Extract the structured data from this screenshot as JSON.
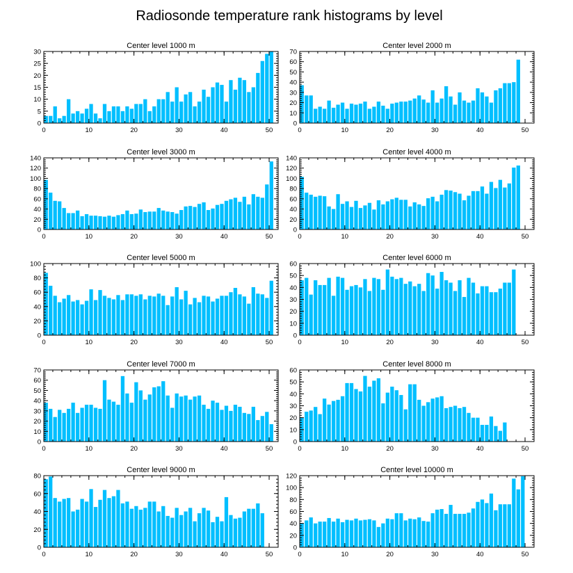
{
  "figure_title": "Radiosonde temperature rank histograms by level",
  "colors": {
    "bar": "#00BFFF",
    "axis": "#000000"
  },
  "chart_data": [
    {
      "type": "bar",
      "title": "Center level 1000 m",
      "xticks": [
        0,
        10,
        20,
        30,
        40,
        50
      ],
      "xlim": [
        0,
        52
      ],
      "ylim": [
        0,
        30
      ],
      "yticks": [
        0,
        5,
        10,
        15,
        20,
        25,
        30
      ],
      "values": [
        3,
        3,
        7,
        2,
        3,
        10,
        4,
        5,
        4,
        6,
        8,
        4,
        2,
        8,
        5,
        7,
        7,
        5,
        7,
        6,
        8,
        8,
        10,
        5,
        7,
        10,
        10,
        13,
        9,
        15,
        9,
        12,
        13,
        7,
        9,
        14,
        11,
        15,
        17,
        16,
        9,
        18,
        14,
        19,
        18,
        13,
        15,
        21,
        26,
        29,
        30
      ]
    },
    {
      "type": "bar",
      "title": "Center level 2000 m",
      "xticks": [
        0,
        10,
        20,
        30,
        40,
        50
      ],
      "xlim": [
        0,
        52
      ],
      "ylim": [
        0,
        70
      ],
      "yticks": [
        0,
        10,
        20,
        30,
        40,
        50,
        60,
        70
      ],
      "values": [
        37,
        27,
        27,
        14,
        16,
        14,
        22,
        15,
        18,
        20,
        14,
        19,
        18,
        19,
        21,
        14,
        16,
        21,
        17,
        14,
        19,
        20,
        21,
        21,
        22,
        24,
        27,
        23,
        20,
        32,
        20,
        24,
        36,
        26,
        18,
        30,
        22,
        20,
        22,
        34,
        30,
        26,
        20,
        32,
        34,
        39,
        39,
        40,
        62,
        0,
        0
      ]
    },
    {
      "type": "bar",
      "title": "Center level 3000 m",
      "xticks": [
        0,
        10,
        20,
        30,
        40,
        50
      ],
      "xlim": [
        0,
        52
      ],
      "ylim": [
        0,
        140
      ],
      "yticks": [
        0,
        20,
        40,
        60,
        80,
        100,
        120,
        140
      ],
      "values": [
        97,
        72,
        56,
        55,
        42,
        32,
        32,
        37,
        26,
        30,
        27,
        27,
        26,
        25,
        27,
        25,
        28,
        30,
        37,
        30,
        31,
        39,
        34,
        35,
        35,
        42,
        37,
        35,
        34,
        31,
        38,
        45,
        46,
        44,
        50,
        53,
        38,
        41,
        48,
        50,
        56,
        59,
        62,
        54,
        64,
        49,
        69,
        64,
        62,
        88,
        133
      ]
    },
    {
      "type": "bar",
      "title": "Center level 4000 m",
      "xticks": [
        0,
        10,
        20,
        30,
        40,
        50
      ],
      "xlim": [
        0,
        52
      ],
      "ylim": [
        0,
        140
      ],
      "yticks": [
        0,
        20,
        40,
        60,
        80,
        100,
        120,
        140
      ],
      "values": [
        103,
        72,
        68,
        64,
        66,
        65,
        45,
        40,
        69,
        50,
        55,
        44,
        56,
        42,
        47,
        52,
        39,
        57,
        49,
        55,
        59,
        62,
        58,
        58,
        45,
        53,
        49,
        46,
        61,
        64,
        55,
        68,
        77,
        76,
        73,
        70,
        57,
        66,
        75,
        75,
        84,
        70,
        93,
        81,
        97,
        82,
        90,
        121,
        125,
        0,
        0
      ]
    },
    {
      "type": "bar",
      "title": "Center level 5000 m",
      "xticks": [
        0,
        10,
        20,
        30,
        40,
        50
      ],
      "xlim": [
        0,
        52
      ],
      "ylim": [
        0,
        100
      ],
      "yticks": [
        0,
        20,
        40,
        60,
        80,
        100
      ],
      "values": [
        87,
        69,
        55,
        46,
        51,
        56,
        47,
        49,
        43,
        48,
        64,
        49,
        63,
        55,
        52,
        50,
        56,
        49,
        57,
        57,
        55,
        57,
        50,
        55,
        54,
        58,
        55,
        42,
        54,
        67,
        50,
        62,
        43,
        52,
        46,
        55,
        54,
        47,
        51,
        55,
        55,
        60,
        66,
        57,
        54,
        44,
        67,
        58,
        57,
        52,
        76
      ]
    },
    {
      "type": "bar",
      "title": "Center level 6000 m",
      "xticks": [
        0,
        10,
        20,
        30,
        40,
        50
      ],
      "xlim": [
        0,
        52
      ],
      "ylim": [
        0,
        60
      ],
      "yticks": [
        0,
        10,
        20,
        30,
        40,
        50,
        60
      ],
      "values": [
        46,
        48,
        34,
        46,
        42,
        42,
        48,
        33,
        49,
        48,
        38,
        41,
        42,
        40,
        47,
        37,
        48,
        47,
        38,
        55,
        49,
        47,
        48,
        43,
        45,
        41,
        43,
        37,
        52,
        50,
        39,
        53,
        46,
        44,
        37,
        46,
        32,
        48,
        44,
        35,
        41,
        41,
        36,
        36,
        39,
        44,
        44,
        55,
        0,
        0,
        0
      ]
    },
    {
      "type": "bar",
      "title": "Center level 7000 m",
      "xticks": [
        0,
        10,
        20,
        30,
        40,
        50
      ],
      "xlim": [
        0,
        52
      ],
      "ylim": [
        0,
        70
      ],
      "yticks": [
        0,
        10,
        20,
        30,
        40,
        50,
        60,
        70
      ],
      "values": [
        38,
        32,
        24,
        31,
        28,
        32,
        38,
        28,
        33,
        36,
        36,
        33,
        32,
        60,
        41,
        39,
        36,
        64,
        47,
        38,
        58,
        50,
        41,
        46,
        53,
        54,
        59,
        45,
        33,
        47,
        44,
        45,
        41,
        44,
        45,
        36,
        32,
        40,
        38,
        31,
        35,
        30,
        36,
        34,
        28,
        27,
        34,
        21,
        25,
        29,
        17
      ]
    },
    {
      "type": "bar",
      "title": "Center level 8000 m",
      "xticks": [
        0,
        10,
        20,
        30,
        40,
        50
      ],
      "xlim": [
        0,
        52
      ],
      "ylim": [
        0,
        60
      ],
      "yticks": [
        0,
        10,
        20,
        30,
        40,
        50,
        60
      ],
      "values": [
        20,
        25,
        26,
        29,
        23,
        36,
        31,
        34,
        35,
        38,
        49,
        49,
        44,
        42,
        55,
        46,
        51,
        53,
        32,
        41,
        46,
        43,
        39,
        27,
        48,
        48,
        35,
        30,
        33,
        36,
        37,
        38,
        28,
        29,
        30,
        28,
        29,
        24,
        20,
        20,
        14,
        14,
        21,
        13,
        9,
        16,
        0,
        0,
        0,
        0,
        0
      ]
    },
    {
      "type": "bar",
      "title": "Center level 9000 m",
      "xticks": [
        0,
        10,
        20,
        30,
        40,
        50
      ],
      "xlim": [
        0,
        52
      ],
      "ylim": [
        0,
        80
      ],
      "yticks": [
        0,
        20,
        40,
        60,
        80
      ],
      "values": [
        76,
        79,
        55,
        51,
        54,
        55,
        40,
        42,
        54,
        51,
        65,
        45,
        53,
        64,
        55,
        57,
        64,
        49,
        51,
        43,
        46,
        42,
        44,
        51,
        51,
        40,
        46,
        35,
        33,
        44,
        36,
        40,
        44,
        29,
        38,
        44,
        41,
        28,
        34,
        29,
        56,
        36,
        32,
        33,
        40,
        43,
        43,
        49,
        38,
        0,
        0
      ]
    },
    {
      "type": "bar",
      "title": "Center level 10000 m",
      "xticks": [
        0,
        10,
        20,
        30,
        40,
        50
      ],
      "xlim": [
        0,
        52
      ],
      "ylim": [
        0,
        120
      ],
      "yticks": [
        0,
        20,
        40,
        60,
        80,
        100,
        120
      ],
      "values": [
        40,
        45,
        50,
        40,
        43,
        43,
        49,
        43,
        48,
        42,
        46,
        45,
        48,
        45,
        46,
        47,
        45,
        34,
        40,
        48,
        47,
        57,
        57,
        45,
        48,
        47,
        50,
        44,
        43,
        57,
        63,
        64,
        56,
        71,
        56,
        56,
        56,
        58,
        65,
        76,
        80,
        74,
        90,
        62,
        72,
        72,
        72,
        115,
        97,
        119,
        0
      ]
    }
  ]
}
